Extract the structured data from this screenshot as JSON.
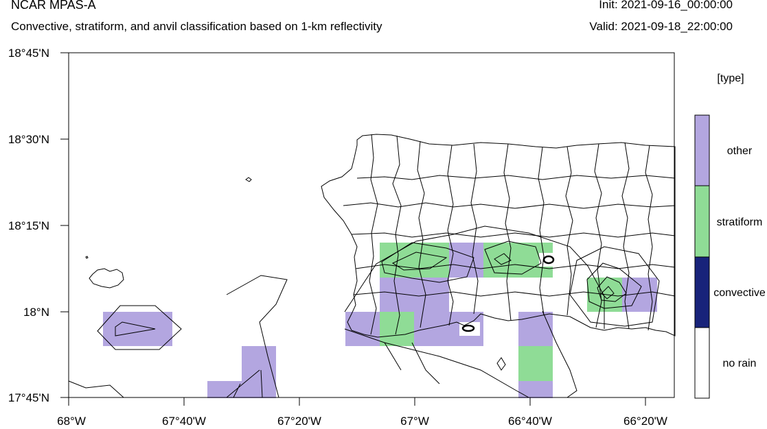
{
  "header": {
    "title": "NCAR MPAS-A",
    "subtitle": "Convective, stratiform, and anvil classification based on 1-km reflectivity",
    "init": "Init: 2021-09-16_00:00:00",
    "valid": "Valid: 2021-09-18_22:00:00"
  },
  "axes": {
    "y_ticks": [
      "18°45'N",
      "18°30'N",
      "18°15'N",
      "18°N",
      "17°45'N"
    ],
    "x_ticks": [
      "68°W",
      "67°40'W",
      "67°20'W",
      "67°W",
      "66°40'W",
      "66°20'W"
    ]
  },
  "legend": {
    "title": "[type]",
    "entries": [
      {
        "label": "other",
        "color": "#b3a6e0"
      },
      {
        "label": "stratiform",
        "color": "#8fdc96"
      },
      {
        "label": "convective",
        "color": "#18237a"
      },
      {
        "label": "no rain",
        "color": "#ffffff"
      }
    ]
  },
  "colors": {
    "other": "#b3a6e0",
    "stratiform": "#8fdc96",
    "convective": "#18237a"
  },
  "map_extent": {
    "lon_min": -68.0,
    "lon_max": -66.25,
    "lat_min": 17.75,
    "lat_max": 18.75
  }
}
